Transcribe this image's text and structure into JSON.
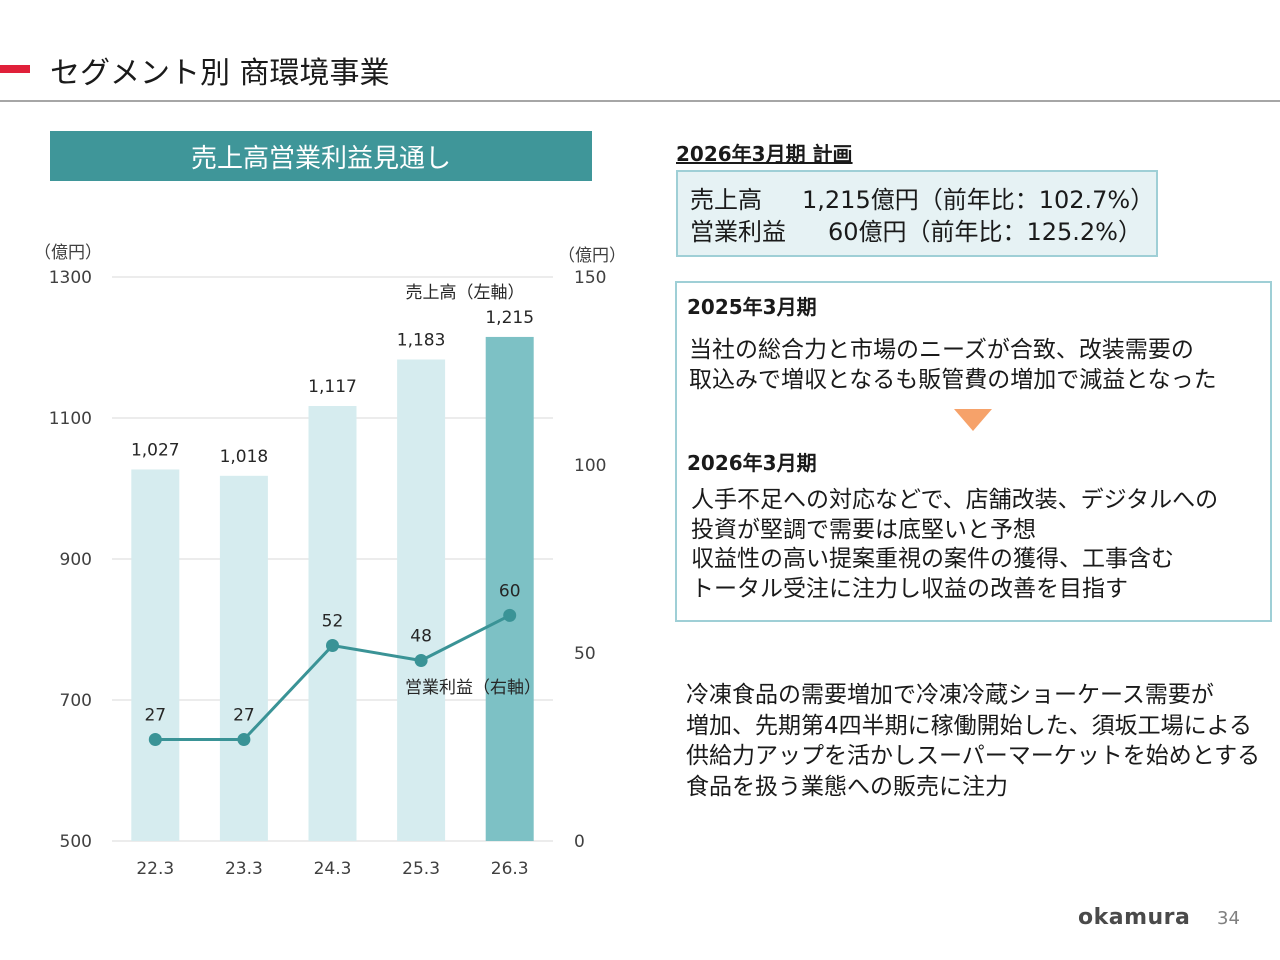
{
  "header": {
    "title": "セグメント別   商環境事業",
    "accent_color": "#e0203a"
  },
  "chart_banner": {
    "title": "売上高営業利益見通し",
    "bg_color": "#3f9699"
  },
  "chart_data": {
    "type": "bar",
    "title": "売上高営業利益見通し",
    "categories": [
      "22.3",
      "23.3",
      "24.3",
      "25.3",
      "26.3"
    ],
    "left_axis": {
      "unit": "（億円）",
      "ticks": [
        500,
        700,
        900,
        1100,
        1300
      ],
      "range": [
        500,
        1300
      ]
    },
    "right_axis": {
      "unit": "（億円）",
      "ticks": [
        0,
        50,
        100,
        150
      ],
      "range": [
        0,
        150
      ]
    },
    "series": [
      {
        "name": "売上高（左軸）",
        "type": "bar",
        "axis": "left",
        "values": [
          1027,
          1018,
          1117,
          1183,
          1215
        ],
        "labels": [
          "1,027",
          "1,018",
          "1,117",
          "1,183",
          "1,215"
        ],
        "color": "#d6ecef",
        "highlight_color": "#7dc1c5"
      },
      {
        "name": "営業利益（右軸）",
        "type": "line",
        "axis": "right",
        "values": [
          27,
          27,
          52,
          48,
          60
        ],
        "labels": [
          "27",
          "27",
          "52",
          "48",
          "60"
        ],
        "color": "#3a9396"
      }
    ],
    "grid": true
  },
  "plan": {
    "header": "2026年3月期  計画",
    "rows": [
      {
        "key": "売上高",
        "value": "1,215億円（前年比：102.7%）"
      },
      {
        "key": "営業利益",
        "value": "60億円（前年比：125.2%）"
      }
    ]
  },
  "review": {
    "fy25_heading": "2025年3月期",
    "fy25_text": "当社の総合力と市場のニーズが合致、改装需要の\n取込みで増収となるも販管費の増加で減益となった",
    "arrow_icon": "triangle-down-icon",
    "arrow_color": "#f6a26a",
    "fy26_heading": "2026年3月期",
    "fy26_text": "人手不足への対応などで、店舗改装、デジタルへの\n投資が堅調で需要は底堅いと予想\n収益性の高い提案重視の案件の獲得、工事含む\nトータル受注に注力し収益の改善を目指す"
  },
  "bottom_note": "冷凍食品の需要増加で冷凍冷蔵ショーケース需要が\n増加、先期第4四半期に稼働開始した、須坂工場による\n供給力アップを活かしスーパーマーケットを始めとする\n食品を扱う業態への販売に注力",
  "footer": {
    "logo": "okamura",
    "page_number": "34"
  }
}
